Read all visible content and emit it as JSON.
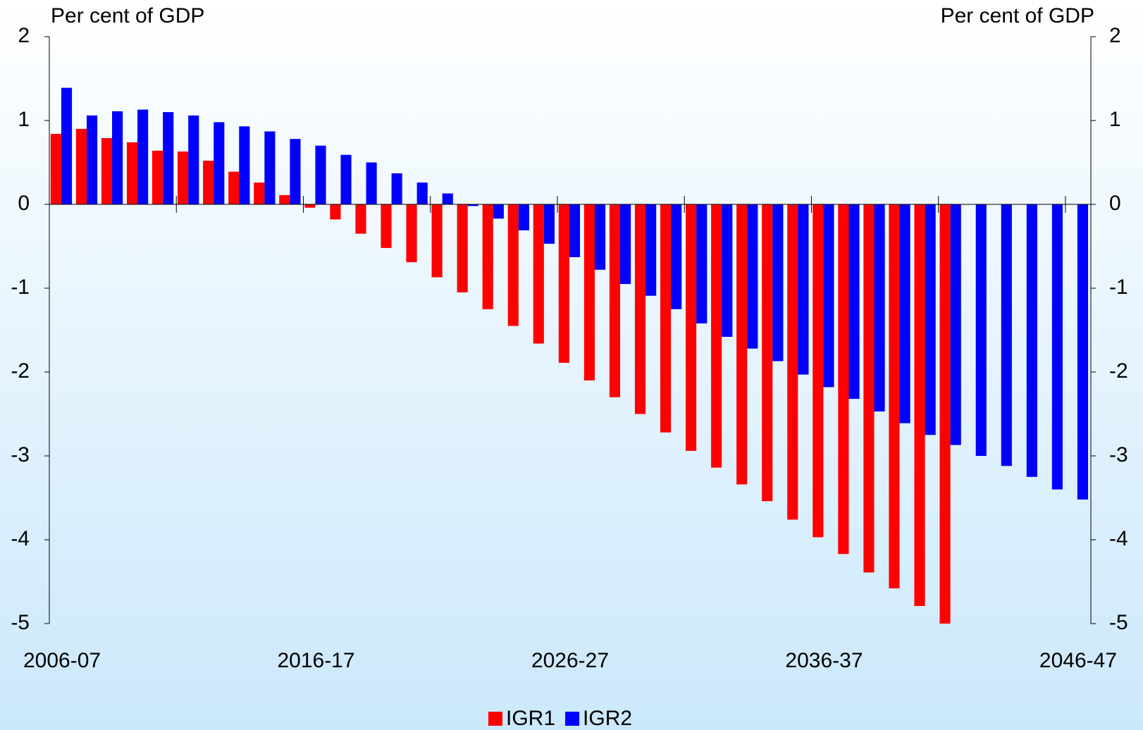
{
  "chart_data": {
    "type": "bar",
    "y_label": "Per cent of GDP",
    "y2_label": "Per cent of GDP",
    "categories": [
      "2006-07",
      null,
      null,
      null,
      null,
      null,
      null,
      null,
      null,
      null,
      "2016-17",
      null,
      null,
      null,
      null,
      null,
      null,
      null,
      null,
      null,
      "2026-27",
      null,
      null,
      null,
      null,
      null,
      null,
      null,
      null,
      null,
      "2036-37",
      null,
      null,
      null,
      null,
      null,
      null,
      null,
      null,
      null,
      "2046-47"
    ],
    "series": [
      {
        "name": "IGR1",
        "color": "#ff0000",
        "values": [
          0.84,
          0.9,
          0.79,
          0.74,
          0.64,
          0.63,
          0.52,
          0.39,
          0.26,
          0.11,
          -0.04,
          -0.18,
          -0.35,
          -0.52,
          -0.69,
          -0.87,
          -1.05,
          -1.25,
          -1.45,
          -1.66,
          -1.89,
          -2.1,
          -2.3,
          -2.5,
          -2.72,
          -2.94,
          -3.14,
          -3.34,
          -3.54,
          -3.76,
          -3.97,
          -4.17,
          -4.39,
          -4.58,
          -4.79,
          -5.0,
          null,
          null,
          null,
          null,
          null
        ]
      },
      {
        "name": "IGR2",
        "color": "#0000ff",
        "values": [
          1.39,
          1.06,
          1.11,
          1.13,
          1.1,
          1.06,
          0.98,
          0.93,
          0.87,
          0.78,
          0.7,
          0.59,
          0.5,
          0.37,
          0.26,
          0.13,
          -0.02,
          -0.17,
          -0.31,
          -0.47,
          -0.63,
          -0.78,
          -0.95,
          -1.09,
          -1.25,
          -1.42,
          -1.58,
          -1.72,
          -1.87,
          -2.03,
          -2.18,
          -2.32,
          -2.47,
          -2.61,
          -2.75,
          -2.87,
          -3.0,
          -3.12,
          -3.25,
          -3.4,
          -3.52
        ]
      }
    ],
    "ylim": [
      -5,
      2
    ],
    "yticks": [
      -5,
      -4,
      -3,
      -2,
      -1,
      0,
      1,
      2
    ],
    "y2lim": [
      -5,
      2
    ],
    "y2ticks": [
      -5,
      -4,
      -3,
      -2,
      -1,
      0,
      1,
      2
    ],
    "grid": false,
    "legend": "bottom"
  }
}
